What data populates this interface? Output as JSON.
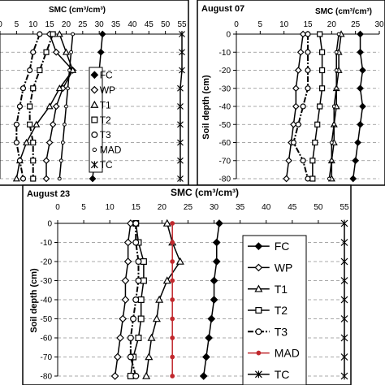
{
  "chart_data": [
    {
      "type": "line",
      "panel": "top-left",
      "title": "",
      "xlabel": "SMC (cm³/cm³)",
      "ylabel": "",
      "xlim": [
        0,
        55
      ],
      "ylim": [
        0,
        -80
      ],
      "x_ticks": [
        0,
        5,
        10,
        15,
        20,
        25,
        30,
        35,
        40,
        45,
        50,
        55
      ],
      "y": [
        0,
        -10,
        -20,
        -30,
        -40,
        -50,
        -60,
        -70,
        -80
      ],
      "legend_position": "center",
      "series": [
        {
          "name": "FC",
          "marker": "filled-diamond",
          "dash": "solid",
          "color": "#000000",
          "values": [
            31,
            30.5,
            30,
            30,
            29.5,
            29.5,
            29,
            28.5,
            28
          ]
        },
        {
          "name": "WP",
          "marker": "open-diamond",
          "dash": "solid",
          "color": "#000000",
          "values": [
            15,
            17,
            22,
            19,
            17,
            16,
            15,
            14,
            14
          ]
        },
        {
          "name": "T1",
          "marker": "open-triangle",
          "dash": "solid",
          "color": "#000000",
          "values": [
            18,
            20,
            22,
            18,
            15,
            11,
            8,
            6,
            5
          ]
        },
        {
          "name": "T2",
          "marker": "open-square",
          "dash": "dash-dot",
          "color": "#000000",
          "values": [
            16,
            14,
            12,
            10,
            9,
            9,
            10,
            10,
            10
          ]
        },
        {
          "name": "T3",
          "marker": "open-circle",
          "dash": "dash-dot",
          "color": "#000000",
          "values": [
            12,
            10,
            9,
            7,
            6,
            5,
            5,
            6,
            7
          ]
        },
        {
          "name": "MAD",
          "marker": "small-open-circle",
          "dash": "solid",
          "color": "#000000",
          "values": [
            22,
            21.5,
            21,
            20.5,
            20,
            19.5,
            19,
            18.5,
            18
          ]
        },
        {
          "name": "TC",
          "marker": "star",
          "dash": "solid",
          "color": "#000000",
          "values": [
            55,
            55,
            55,
            54.5,
            54.5,
            54.5,
            54.5,
            54.5,
            54.5
          ]
        }
      ]
    },
    {
      "type": "line",
      "panel": "top-right",
      "title": "August 07",
      "xlabel": "SMC (cm³/cm³)",
      "ylabel": "Soil depth (cm)",
      "xlim": [
        0,
        30
      ],
      "ylim": [
        0,
        -80
      ],
      "x_ticks": [
        0,
        5,
        10,
        15,
        20,
        25,
        30
      ],
      "y": [
        0,
        -10,
        -20,
        -30,
        -40,
        -50,
        -60,
        -70,
        -80
      ],
      "series": [
        {
          "name": "FC",
          "marker": "filled-diamond",
          "dash": "solid",
          "color": "#000000",
          "values": [
            26,
            26,
            26.5,
            26,
            26.5,
            26,
            25.5,
            25,
            24.5
          ]
        },
        {
          "name": "WP",
          "marker": "open-diamond",
          "dash": "solid",
          "color": "#000000",
          "values": [
            14,
            13.5,
            13,
            12.5,
            12.5,
            12,
            11.5,
            11,
            10.5
          ]
        },
        {
          "name": "T1",
          "marker": "open-triangle",
          "dash": "solid",
          "color": "#000000",
          "values": [
            22,
            21.5,
            21.5,
            21,
            21,
            20.5,
            20.5,
            20,
            20
          ]
        },
        {
          "name": "T2",
          "marker": "open-square",
          "dash": "solid",
          "color": "#000000",
          "values": [
            17.5,
            18,
            18,
            18,
            17.5,
            17,
            16.5,
            16,
            16
          ]
        },
        {
          "name": "T3",
          "marker": "open-circle",
          "dash": "dash-dot",
          "color": "#000000",
          "values": [
            15,
            15,
            15,
            15,
            14,
            13,
            12,
            14,
            15
          ]
        },
        {
          "name": "MAD",
          "marker": "small-open-circle",
          "dash": "solid",
          "color": "#000000",
          "values": [
            21.5,
            21,
            21,
            21,
            20.5,
            20.5,
            20,
            20,
            19.5
          ]
        }
      ]
    },
    {
      "type": "line",
      "panel": "bottom",
      "title": "August 23",
      "xlabel": "SMC (cm³/cm³)",
      "ylabel": "Soil depth (cm)",
      "xlim": [
        0,
        55
      ],
      "ylim": [
        0,
        -80
      ],
      "x_ticks": [
        0,
        5,
        10,
        15,
        20,
        25,
        30,
        35,
        40,
        45,
        50,
        55
      ],
      "y": [
        0,
        -10,
        -20,
        -30,
        -40,
        -50,
        -60,
        -70,
        -80
      ],
      "legend_position": "right",
      "series": [
        {
          "name": "FC",
          "marker": "filled-diamond",
          "dash": "solid",
          "color": "#000000",
          "values": [
            31,
            30.5,
            30.5,
            30,
            30,
            29.5,
            29,
            28.5,
            28
          ]
        },
        {
          "name": "WP",
          "marker": "open-diamond",
          "dash": "solid",
          "color": "#000000",
          "values": [
            14,
            13.5,
            13.5,
            13,
            13,
            12.5,
            12,
            11.5,
            11
          ]
        },
        {
          "name": "T1",
          "marker": "open-triangle",
          "dash": "solid",
          "color": "#000000",
          "values": [
            21,
            22,
            23.5,
            21,
            19.5,
            19,
            18,
            17.5,
            17
          ]
        },
        {
          "name": "T2",
          "marker": "open-square",
          "dash": "solid",
          "color": "#000000",
          "values": [
            15,
            15.5,
            16.5,
            16.5,
            16,
            16,
            15.5,
            14.5,
            14
          ]
        },
        {
          "name": "T3",
          "marker": "open-circle",
          "dash": "dash-dot",
          "color": "#000000",
          "values": [
            15,
            15,
            15.5,
            15.5,
            15,
            14.5,
            14,
            14,
            15
          ]
        },
        {
          "name": "MAD",
          "marker": "small-filled-circle",
          "dash": "solid",
          "color": "#c0282d",
          "values": [
            22,
            22,
            22,
            22,
            22,
            22,
            22,
            22,
            22
          ]
        },
        {
          "name": "TC",
          "marker": "star",
          "dash": "solid",
          "color": "#000000",
          "values": [
            55,
            55,
            55,
            55,
            55,
            55,
            55,
            55,
            55
          ]
        }
      ]
    }
  ]
}
